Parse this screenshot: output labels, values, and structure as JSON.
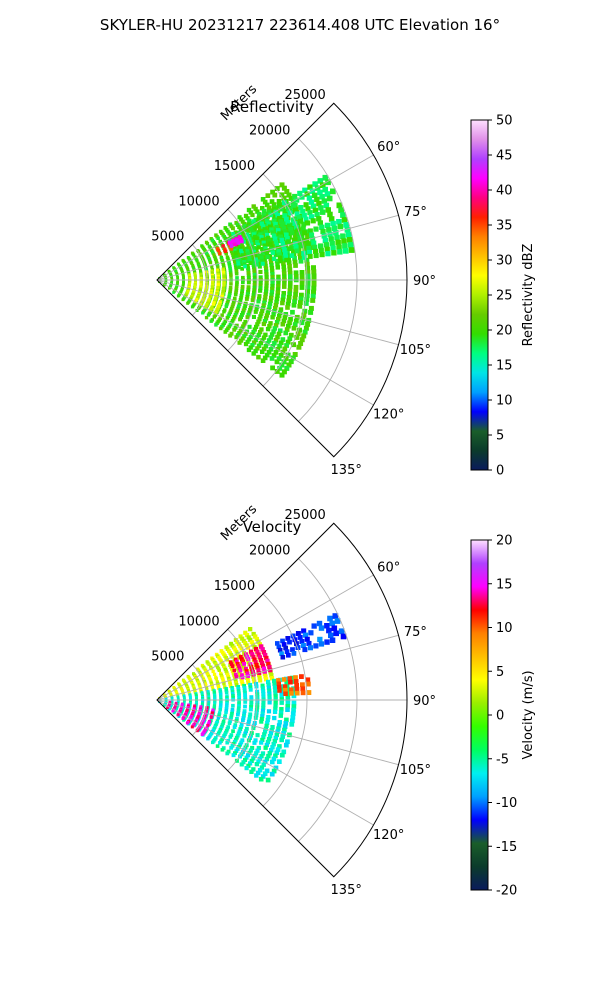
{
  "figure": {
    "title": "SKYLER-HU  20231217  223614.408 UTC Elevation 16°"
  },
  "colors": {
    "reflectivity_stops": [
      "#0a1b5c",
      "#0b3b2b",
      "#1a5e2a",
      "#0000ff",
      "#00a0ff",
      "#00e5e5",
      "#00ff80",
      "#33dd00",
      "#66cc00",
      "#b0f000",
      "#ffff00",
      "#ffc000",
      "#ff8000",
      "#ff2000",
      "#ff0080",
      "#ff00ff",
      "#b040ff",
      "#e090e8",
      "#ffe0ff"
    ],
    "velocity_stops": [
      "#0a1b5c",
      "#0b3b2b",
      "#1a5e2a",
      "#0000ff",
      "#00a0ff",
      "#00f0f0",
      "#00ff60",
      "#33ff00",
      "#99ee00",
      "#ffff00",
      "#ffc000",
      "#ff8000",
      "#ff0000",
      "#ff00ff",
      "#b040ff",
      "#ffe0ff"
    ]
  },
  "chart_data": [
    {
      "type": "heatmap",
      "projection": "polar-sector",
      "title": "Reflectivity",
      "radial_label": "Meters",
      "radial_ticks": [
        "5000",
        "10000",
        "15000",
        "20000",
        "25000"
      ],
      "radial_tick_values": [
        5000,
        10000,
        15000,
        20000,
        25000
      ],
      "radial_range": [
        0,
        25000
      ],
      "azimuth_range": [
        45,
        135
      ],
      "azimuth_ticks": [
        "60°",
        "75°",
        "90°",
        "105°",
        "120°",
        "135°"
      ],
      "azimuth_tick_values": [
        60,
        75,
        90,
        105,
        120,
        135
      ],
      "grid": true,
      "colorbar": {
        "label": "Reflectivity dBZ",
        "range": [
          0,
          50
        ],
        "ticks": [
          "0",
          "5",
          "10",
          "15",
          "20",
          "25",
          "30",
          "35",
          "40",
          "45",
          "50"
        ],
        "tick_values": [
          0,
          5,
          10,
          15,
          20,
          25,
          30,
          35,
          40,
          45,
          50
        ]
      },
      "echo_regions": [
        {
          "az_min": 52,
          "az_max": 128,
          "r_min": 0,
          "r_max": 16000,
          "value": 20
        },
        {
          "az_min": 58,
          "az_max": 82,
          "r_min": 8000,
          "r_max": 20000,
          "value": 18
        },
        {
          "az_min": 62,
          "az_max": 68,
          "r_min": 6500,
          "r_max": 9000,
          "value": 36
        },
        {
          "az_min": 62,
          "az_max": 66,
          "r_min": 8000,
          "r_max": 9500,
          "value": 42
        },
        {
          "az_min": 80,
          "az_max": 120,
          "r_min": 3000,
          "r_max": 7000,
          "value": 26
        }
      ]
    },
    {
      "type": "heatmap",
      "projection": "polar-sector",
      "title": "Velocity",
      "radial_label": "Meters",
      "radial_ticks": [
        "5000",
        "10000",
        "15000",
        "20000",
        "25000"
      ],
      "radial_tick_values": [
        5000,
        10000,
        15000,
        20000,
        25000
      ],
      "radial_range": [
        0,
        25000
      ],
      "azimuth_range": [
        45,
        135
      ],
      "azimuth_ticks": [
        "60°",
        "75°",
        "90°",
        "105°",
        "120°",
        "135°"
      ],
      "azimuth_tick_values": [
        60,
        75,
        90,
        105,
        120,
        135
      ],
      "grid": true,
      "colorbar": {
        "label": "Velocity (m/s)",
        "range": [
          -20,
          20
        ],
        "ticks": [
          "-20",
          "-15",
          "-10",
          "-5",
          "0",
          "5",
          "10",
          "15",
          "20"
        ],
        "tick_values": [
          -20,
          -15,
          -10,
          -5,
          0,
          5,
          10,
          15,
          20
        ]
      },
      "echo_regions": [
        {
          "az_min": 52,
          "az_max": 80,
          "r_min": 0,
          "r_max": 12000,
          "value": 3
        },
        {
          "az_min": 80,
          "az_max": 128,
          "r_min": 0,
          "r_max": 14000,
          "value": -6
        },
        {
          "az_min": 62,
          "az_max": 76,
          "r_min": 8000,
          "r_max": 12000,
          "value": 13
        },
        {
          "az_min": 64,
          "az_max": 72,
          "r_min": 13000,
          "r_max": 20000,
          "value": -11
        },
        {
          "az_min": 80,
          "az_max": 88,
          "r_min": 12000,
          "r_max": 15500,
          "value": 10
        },
        {
          "az_min": 98,
          "az_max": 128,
          "r_min": 1000,
          "r_max": 6000,
          "value": 14
        }
      ]
    }
  ]
}
